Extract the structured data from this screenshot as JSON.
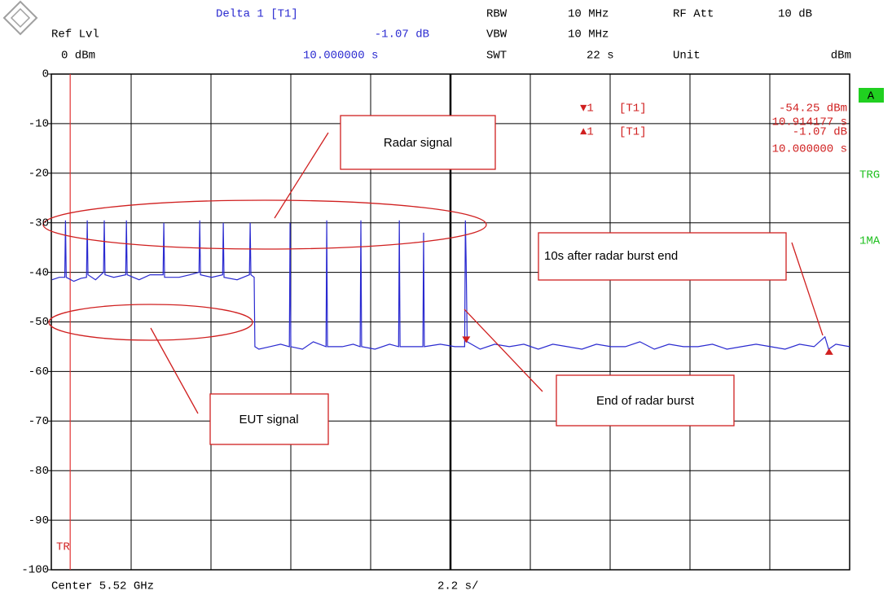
{
  "header": {
    "delta_title": "Delta 1 [T1]",
    "delta_level": "-1.07 dB",
    "delta_time": "10.000000 s",
    "ref_label": "Ref Lvl",
    "ref_value": "0 dBm",
    "rbw_label": "RBW",
    "rbw_value": "10 MHz",
    "vbw_label": "VBW",
    "vbw_value": "10 MHz",
    "swt_label": "SWT",
    "swt_value": "22 s",
    "att_label": "RF Att",
    "att_value": "10 dB",
    "unit_label": "Unit",
    "unit_value": "dBm"
  },
  "marker_readouts": [
    {
      "symbol": "▼1",
      "trace": "[T1]",
      "level": "-54.25 dBm",
      "position": "10.914177 s"
    },
    {
      "symbol": "▲1",
      "trace": "[T1]",
      "level": "-1.07 dB",
      "position": "10.000000 s"
    }
  ],
  "side": {
    "trace_box": "A",
    "trigger": "TRG",
    "mode": "1MA"
  },
  "footer": {
    "center": "Center 5.52 GHz",
    "span": "2.2 s/"
  },
  "trigger_label": "TR",
  "annotations": [
    "Radar signal",
    "10s after radar burst end",
    "End of radar burst",
    "EUT signal"
  ],
  "chart_data": {
    "type": "line",
    "xlim": [
      -0.52,
      21.48
    ],
    "ylim": [
      -100,
      0
    ],
    "yticks": [
      0,
      -10,
      -20,
      -30,
      -40,
      -50,
      -60,
      -70,
      -80,
      -90,
      -100
    ],
    "grid": true,
    "trigger_x": 0,
    "x": [
      -0.5,
      -0.3,
      -0.15,
      -0.13,
      -0.11,
      0.1,
      0.3,
      0.45,
      0.47,
      0.49,
      0.7,
      0.92,
      0.94,
      0.96,
      1.2,
      1.53,
      1.55,
      1.57,
      1.9,
      2.2,
      2.56,
      2.58,
      2.6,
      3.0,
      3.3,
      3.55,
      3.57,
      3.59,
      3.9,
      4.2,
      4.22,
      4.24,
      4.6,
      4.94,
      4.96,
      4.98,
      5.07,
      5.09,
      5.2,
      5.5,
      5.8,
      6.04,
      6.06,
      6.08,
      6.4,
      6.7,
      7.05,
      7.07,
      7.09,
      7.5,
      7.8,
      7.99,
      8.01,
      8.03,
      8.4,
      8.8,
      9.05,
      9.07,
      9.09,
      9.4,
      9.72,
      9.74,
      9.76,
      10.2,
      10.6,
      10.87,
      10.89,
      10.91,
      10.94,
      11.3,
      11.7,
      12.1,
      12.5,
      12.9,
      13.3,
      13.7,
      14.1,
      14.5,
      14.9,
      15.3,
      15.7,
      16.1,
      16.5,
      16.9,
      17.3,
      17.7,
      18.1,
      18.5,
      18.9,
      19.3,
      19.7,
      20.1,
      20.5,
      20.8,
      20.9,
      21.1,
      21.48
    ],
    "series": [
      {
        "color": "#2a2ad0",
        "values": [
          -41.5,
          -41,
          -41,
          -29.5,
          -41,
          -41.8,
          -41.2,
          -41,
          -29.5,
          -40.5,
          -41.5,
          -40,
          -29.5,
          -40.5,
          -41,
          -40.5,
          -29.5,
          -40.5,
          -41.5,
          -40.5,
          -40.5,
          -30,
          -41,
          -41,
          -40.5,
          -40,
          -29.5,
          -40.5,
          -41,
          -40.5,
          -30,
          -41,
          -41.5,
          -40.5,
          -30,
          -40.5,
          -41,
          -55,
          -55.5,
          -55,
          -54.5,
          -55,
          -30,
          -55,
          -55.5,
          -54,
          -55,
          -29.5,
          -55,
          -55,
          -54.5,
          -55,
          -29.5,
          -55,
          -55.5,
          -54.5,
          -55,
          -29.5,
          -55,
          -55,
          -55,
          -32,
          -55,
          -54.5,
          -55,
          -55,
          -29.5,
          -37.5,
          -54,
          -55.5,
          -54.5,
          -55,
          -54.5,
          -55.5,
          -54.5,
          -55,
          -55.5,
          -54.5,
          -55,
          -55,
          -54,
          -55.5,
          -54.5,
          -55,
          -55,
          -54.5,
          -55.5,
          -55,
          -54.5,
          -55,
          -55.5,
          -54.5,
          -55,
          -53,
          -55.5,
          -54.5,
          -55
        ]
      }
    ],
    "markers": [
      {
        "x": 10.914177,
        "y": -54.25,
        "color": "#d02020",
        "direction": "down"
      },
      {
        "x": 20.914177,
        "y": -55.32,
        "color": "#d02020",
        "direction": "up"
      }
    ]
  }
}
